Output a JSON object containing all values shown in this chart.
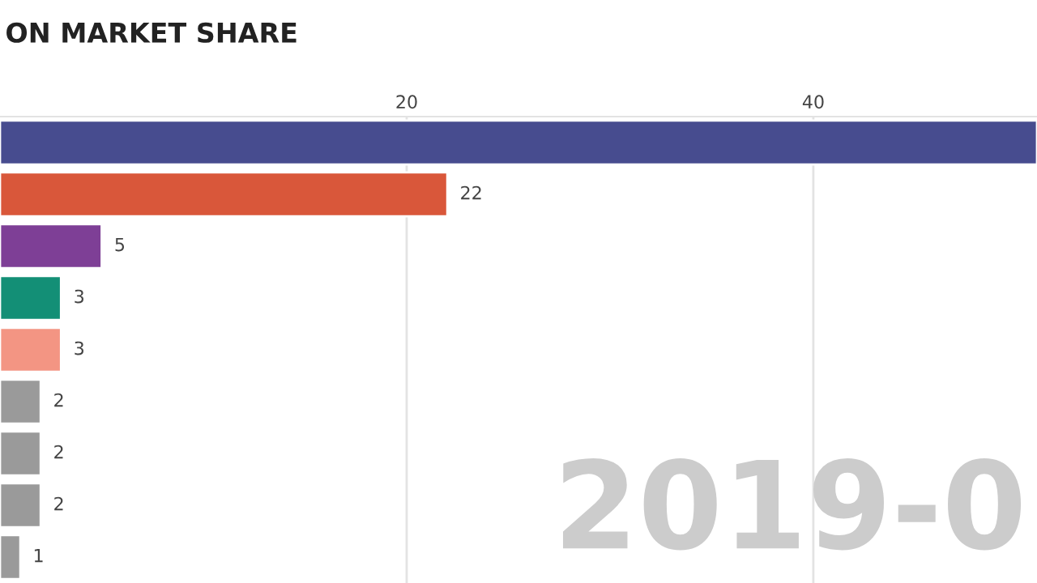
{
  "chart_data": {
    "type": "bar",
    "orientation": "horizontal",
    "title": "ON MARKET SHARE",
    "categories": [
      null,
      null,
      null,
      null,
      null,
      null,
      null,
      null,
      null
    ],
    "values": [
      51,
      22,
      5,
      3,
      3,
      2,
      2,
      2,
      1
    ],
    "value_labels": [
      null,
      "22",
      "5",
      "3",
      "3",
      "2",
      "2",
      "2",
      "1"
    ],
    "colors": [
      "#474c8f",
      "#d9573a",
      "#7e3f96",
      "#138f76",
      "#f39583",
      "#9a9a9a",
      "#9a9a9a",
      "#9a9a9a",
      "#9a9a9a"
    ],
    "xlim": [
      0,
      51
    ],
    "xticks": [
      20,
      40
    ],
    "grid": "x",
    "annotations": [
      "2019-0"
    ]
  }
}
